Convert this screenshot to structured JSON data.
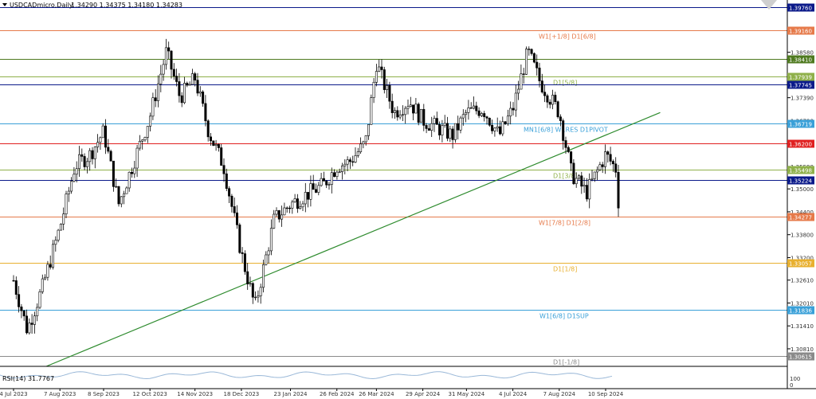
{
  "header": {
    "symbol": "USDCADmicro,Daily",
    "ohlc": "1.34290 1.34375 1.34180 1.34283"
  },
  "rsi_label": "RSI(14) 31.7767",
  "rsi_ticks": [
    "100",
    "0"
  ],
  "chart_data": {
    "type": "candlestick",
    "xlabel": "",
    "ylabel": "",
    "ylim": [
      1.3035,
      1.3995
    ],
    "y_ticks": [
      1.3976,
      1.3916,
      1.3858,
      1.3798,
      1.3739,
      1.3679,
      1.362,
      1.3559,
      1.35,
      1.344,
      1.338,
      1.332,
      1.3261,
      1.3201,
      1.3141,
      1.3081
    ],
    "x_ticks": [
      "4 Jul 2023",
      "7 Aug 2023",
      "8 Sep 2023",
      "12 Oct 2023",
      "14 Nov 2023",
      "18 Dec 2023",
      "23 Jan 2024",
      "26 Feb 2024",
      "26 Mar 2024",
      "29 Apr 2024",
      "31 May 2024",
      "4 Jul 2024",
      "7 Aug 2024",
      "10 Sep 2024"
    ],
    "price_path": [
      [
        "4 Jul 2023",
        1.326
      ],
      [
        "14 Jul 2023",
        1.313
      ],
      [
        "25 Jul 2023",
        1.324
      ],
      [
        "7 Aug 2023",
        1.34
      ],
      [
        "18 Aug 2023",
        1.356
      ],
      [
        "29 Aug 2023",
        1.359
      ],
      [
        "8 Sep 2023",
        1.365
      ],
      [
        "19 Sep 2023",
        1.346
      ],
      [
        "29 Sep 2023",
        1.356
      ],
      [
        "12 Oct 2023",
        1.369
      ],
      [
        "24 Oct 2023",
        1.386
      ],
      [
        "3 Nov 2023",
        1.374
      ],
      [
        "14 Nov 2023",
        1.379
      ],
      [
        "24 Nov 2023",
        1.365
      ],
      [
        "5 Dec 2023",
        1.356
      ],
      [
        "18 Dec 2023",
        1.333
      ],
      [
        "28 Dec 2023",
        1.319
      ],
      [
        "11 Jan 2024",
        1.342
      ],
      [
        "23 Jan 2024",
        1.346
      ],
      [
        "6 Feb 2024",
        1.349
      ],
      [
        "16 Feb 2024",
        1.351
      ],
      [
        "26 Feb 2024",
        1.356
      ],
      [
        "6 Mar 2024",
        1.357
      ],
      [
        "18 Mar 2024",
        1.362
      ],
      [
        "26 Mar 2024",
        1.383
      ],
      [
        "8 Apr 2024",
        1.37
      ],
      [
        "19 Apr 2024",
        1.373
      ],
      [
        "29 Apr 2024",
        1.368
      ],
      [
        "10 May 2024",
        1.366
      ],
      [
        "21 May 2024",
        1.364
      ],
      [
        "31 May 2024",
        1.37
      ],
      [
        "12 Jun 2024",
        1.371
      ],
      [
        "24 Jun 2024",
        1.364
      ],
      [
        "4 Jul 2024",
        1.371
      ],
      [
        "15 Jul 2024",
        1.386
      ],
      [
        "24 Jul 2024",
        1.378
      ],
      [
        "7 Aug 2024",
        1.37
      ],
      [
        "16 Aug 2024",
        1.354
      ],
      [
        "27 Aug 2024",
        1.349
      ],
      [
        "10 Sep 2024",
        1.359
      ],
      [
        "18 Sep 2024",
        1.355
      ],
      [
        "20 Sep 2024",
        1.3428
      ]
    ],
    "levels": [
      {
        "value": 1.3976,
        "label": "",
        "price": "1.39760",
        "color": "#0b1a8a"
      },
      {
        "value": 1.3916,
        "label": "W1[+1/8] D1[6/8]",
        "price": "1.39160",
        "color": "#e67a4a"
      },
      {
        "value": 1.3841,
        "label": "",
        "price": "1.38410",
        "color": "#4f7a20"
      },
      {
        "value": 1.37939,
        "label": "D1[5/8]",
        "price": "1.37939",
        "color": "#8fb04a"
      },
      {
        "value": 1.37745,
        "label": "",
        "price": "1.37745",
        "color": "#0b1a8a"
      },
      {
        "value": 1.36719,
        "label": "MN1[6/8] W1RES D1PIVOT",
        "price": "1.36719",
        "color": "#3aa0d8"
      },
      {
        "value": 1.362,
        "label": "",
        "price": "1.36200",
        "color": "#e02020"
      },
      {
        "value": 1.35498,
        "label": "D1[3/8]",
        "price": "1.35498",
        "color": "#8fb04a"
      },
      {
        "value": 1.35224,
        "label": "",
        "price": "1.35224",
        "color": "#0b1a8a"
      },
      {
        "value": 1.34277,
        "label": "W1[7/8] D1[2/8]",
        "price": "1.34277",
        "color": "#e67a4a"
      },
      {
        "value": 1.33057,
        "label": "D1[1/8]",
        "price": "1.33057",
        "color": "#e8b030"
      },
      {
        "value": 1.31836,
        "label": "W1[6/8] D1SUP",
        "price": "1.31836",
        "color": "#3aa0d8"
      },
      {
        "value": 1.30615,
        "label": "D1[-1/8]",
        "price": "1.30615",
        "color": "#8a8a8a"
      }
    ],
    "trendline": {
      "from": [
        "28 Jul 2023",
        1.3035
      ],
      "to": [
        "20 Oct 2024",
        1.37
      ],
      "color": "#2e8b2e"
    }
  }
}
